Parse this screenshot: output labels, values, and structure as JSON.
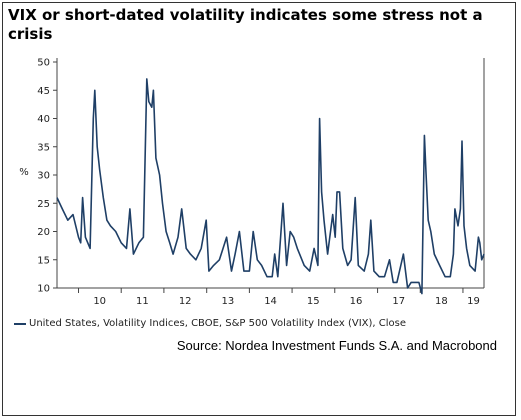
{
  "title": "VIX or short-dated volatility indicates some stress not a crisis",
  "source": "Source: Nordea Investment Funds S.A. and Macrobond",
  "colors": {
    "series": "#1f3f66",
    "axis": "#444444",
    "grid": "#dddddd"
  },
  "chart_data": {
    "type": "line",
    "title": "VIX or short-dated volatility indicates some stress not a crisis",
    "ylabel": "%",
    "xlabel": "",
    "ylim": [
      10,
      50
    ],
    "yticks": [
      10,
      15,
      20,
      25,
      30,
      35,
      40,
      45,
      50
    ],
    "xlim": [
      "2009-07-01",
      "2019-06-30"
    ],
    "xtick_labels": [
      {
        "label": "10",
        "center": "2010-07-01"
      },
      {
        "label": "11",
        "center": "2011-07-01"
      },
      {
        "label": "12",
        "center": "2012-07-01"
      },
      {
        "label": "13",
        "center": "2013-07-01"
      },
      {
        "label": "14",
        "center": "2014-07-01"
      },
      {
        "label": "15",
        "center": "2015-07-01"
      },
      {
        "label": "16",
        "center": "2016-07-01"
      },
      {
        "label": "17",
        "center": "2017-07-01"
      },
      {
        "label": "18",
        "center": "2018-07-01"
      },
      {
        "label": "19",
        "center": "2019-04-01"
      }
    ],
    "year_boundaries": [
      "2010-01-01",
      "2011-01-01",
      "2012-01-01",
      "2013-01-01",
      "2014-01-01",
      "2015-01-01",
      "2016-01-01",
      "2017-01-01",
      "2018-01-01",
      "2019-01-01"
    ],
    "grid": false,
    "legend": "bottom-left",
    "series": [
      {
        "name": "United States, Volatility Indices, CBOE, S&P 500 Volatility Index (VIX), Close",
        "x": [
          "2009-07-01",
          "2009-08-15",
          "2009-10-01",
          "2009-11-15",
          "2010-01-01",
          "2010-01-20",
          "2010-02-05",
          "2010-03-01",
          "2010-04-10",
          "2010-05-07",
          "2010-05-20",
          "2010-06-10",
          "2010-06-30",
          "2010-08-01",
          "2010-09-01",
          "2010-10-01",
          "2010-11-15",
          "2011-01-01",
          "2011-02-15",
          "2011-03-16",
          "2011-04-15",
          "2011-06-01",
          "2011-07-10",
          "2011-08-08",
          "2011-08-25",
          "2011-09-20",
          "2011-10-03",
          "2011-10-25",
          "2011-11-25",
          "2011-12-20",
          "2012-01-20",
          "2012-02-20",
          "2012-03-20",
          "2012-05-01",
          "2012-06-01",
          "2012-07-10",
          "2012-08-15",
          "2012-10-01",
          "2012-11-15",
          "2012-12-28",
          "2013-01-20",
          "2013-03-01",
          "2013-04-20",
          "2013-06-20",
          "2013-08-01",
          "2013-09-01",
          "2013-10-08",
          "2013-11-15",
          "2014-01-01",
          "2014-02-03",
          "2014-03-10",
          "2014-04-15",
          "2014-06-01",
          "2014-07-15",
          "2014-08-05",
          "2014-09-01",
          "2014-10-15",
          "2014-11-15",
          "2014-12-16",
          "2015-01-15",
          "2015-02-15",
          "2015-04-15",
          "2015-06-01",
          "2015-07-08",
          "2015-08-10",
          "2015-08-24",
          "2015-09-10",
          "2015-10-01",
          "2015-11-01",
          "2015-12-14",
          "2016-01-05",
          "2016-01-20",
          "2016-02-11",
          "2016-03-10",
          "2016-04-20",
          "2016-05-20",
          "2016-06-24",
          "2016-07-20",
          "2016-09-09",
          "2016-10-15",
          "2016-11-04",
          "2016-12-01",
          "2017-01-15",
          "2017-03-01",
          "2017-04-13",
          "2017-05-15",
          "2017-06-15",
          "2017-08-10",
          "2017-09-15",
          "2017-10-15",
          "2017-11-15",
          "2017-12-20",
          "2018-01-15",
          "2018-02-05",
          "2018-02-20",
          "2018-03-10",
          "2018-04-01",
          "2018-05-01",
          "2018-06-15",
          "2018-08-01",
          "2018-09-15",
          "2018-10-11",
          "2018-10-24",
          "2018-11-20",
          "2018-12-10",
          "2018-12-24",
          "2019-01-10",
          "2019-02-01",
          "2019-03-01",
          "2019-04-15",
          "2019-05-13",
          "2019-05-25",
          "2019-06-10",
          "2019-06-30"
        ],
        "y": [
          26,
          24,
          22,
          23,
          19,
          18,
          26,
          19,
          17,
          40,
          45,
          35,
          31,
          26,
          22,
          21,
          20,
          18,
          17,
          24,
          16,
          18,
          19,
          47,
          43,
          42,
          45,
          33,
          30,
          25,
          20,
          18,
          16,
          19,
          24,
          17,
          16,
          15,
          17,
          22,
          13,
          14,
          15,
          19,
          13,
          16,
          20,
          13,
          13,
          20,
          15,
          14,
          12,
          12,
          16,
          12,
          25,
          14,
          20,
          19,
          17,
          14,
          13,
          17,
          14,
          40,
          27,
          22,
          16,
          23,
          19,
          27,
          27,
          17,
          14,
          15,
          26,
          14,
          13,
          16,
          22,
          13,
          12,
          12,
          15,
          11,
          11,
          16,
          10,
          11,
          11,
          11,
          9,
          37,
          30,
          22,
          20,
          16,
          14,
          12,
          12,
          16,
          24,
          21,
          24,
          36,
          21,
          17,
          14,
          13,
          19,
          18,
          15,
          16
        ]
      }
    ]
  }
}
